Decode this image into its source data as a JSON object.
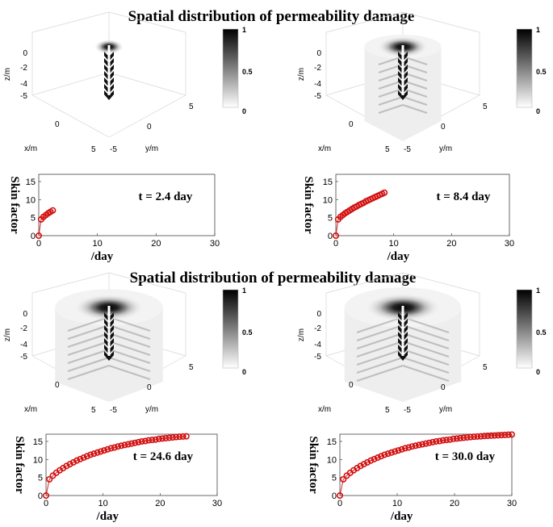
{
  "figure": {
    "title_top": "Spatial distribution of permeability damage",
    "title_bottom": "Spatial distribution of permeability damage"
  },
  "chart_data": [
    {
      "type": "heatmap",
      "title": "Spatial distribution of permeability damage",
      "panel": "3d-top-left",
      "xlabel": "x/m",
      "ylabel": "y/m",
      "zlabel": "z/m",
      "xticks": [
        "0",
        "5"
      ],
      "yticks": [
        "-5",
        "0",
        "5"
      ],
      "zticks": [
        "0",
        "-2",
        "-4",
        "-5"
      ],
      "colorbar": {
        "ticks": [
          "1",
          "0.5",
          "0"
        ],
        "range": [
          0,
          1
        ]
      },
      "time_day": 2.4,
      "damage_radius_fraction": 0.12
    },
    {
      "type": "heatmap",
      "panel": "3d-top-right",
      "xlabel": "x/m",
      "ylabel": "y/m",
      "zlabel": "z/m",
      "xticks": [
        "0",
        "5"
      ],
      "yticks": [
        "-5",
        "0",
        "5"
      ],
      "zticks": [
        "0",
        "-2",
        "-4",
        "-5"
      ],
      "colorbar": {
        "ticks": [
          "1",
          "0.5",
          "0"
        ],
        "range": [
          0,
          1
        ]
      },
      "time_day": 8.4,
      "damage_radius_fraction": 0.5
    },
    {
      "type": "scatter",
      "panel": "skin-top-left",
      "ylabel": "Skin factor",
      "xlabel": "/day",
      "annotation": "t = 2.4 day",
      "xlim": [
        0,
        30
      ],
      "ylim": [
        0,
        17
      ],
      "xticks": [
        "0",
        "10",
        "20",
        "30"
      ],
      "yticks": [
        "0",
        "5",
        "10",
        "15"
      ],
      "x": [
        0,
        0.4,
        0.8,
        1.2,
        1.6,
        2.0,
        2.4
      ],
      "y": [
        0,
        4.5,
        5.2,
        5.7,
        6.2,
        6.6,
        7.0
      ]
    },
    {
      "type": "scatter",
      "panel": "skin-top-right",
      "ylabel": "Skin factor",
      "xlabel": "/day",
      "annotation": "t = 8.4 day",
      "xlim": [
        0,
        30
      ],
      "ylim": [
        0,
        17
      ],
      "xticks": [
        "0",
        "10",
        "20",
        "30"
      ],
      "yticks": [
        "0",
        "5",
        "10",
        "15"
      ],
      "x": [
        0,
        0.4,
        0.8,
        1.2,
        1.6,
        2.0,
        2.4,
        2.8,
        3.2,
        3.6,
        4.0,
        4.4,
        4.8,
        5.2,
        5.6,
        6.0,
        6.4,
        6.8,
        7.2,
        7.6,
        8.0,
        8.4
      ],
      "y": [
        0,
        4.5,
        5.2,
        5.7,
        6.2,
        6.6,
        7.0,
        7.4,
        7.8,
        8.1,
        8.5,
        8.8,
        9.1,
        9.5,
        9.8,
        10.1,
        10.4,
        10.7,
        11.0,
        11.3,
        11.6,
        11.9
      ]
    },
    {
      "type": "heatmap",
      "title": "Spatial distribution of permeability damage",
      "panel": "3d-bottom-left",
      "xlabel": "x/m",
      "ylabel": "y/m",
      "zlabel": "z/m",
      "xticks": [
        "0",
        "5"
      ],
      "yticks": [
        "-5",
        "0",
        "5"
      ],
      "zticks": [
        "0",
        "-2",
        "-4",
        "-5"
      ],
      "colorbar": {
        "ticks": [
          "1",
          "0.5",
          "0"
        ],
        "range": [
          0,
          1
        ]
      },
      "time_day": 24.6,
      "damage_radius_fraction": 0.85
    },
    {
      "type": "heatmap",
      "panel": "3d-bottom-right",
      "xlabel": "x/m",
      "ylabel": "y/m",
      "zlabel": "z/m",
      "xticks": [
        "0",
        "5"
      ],
      "yticks": [
        "-5",
        "0",
        "5"
      ],
      "zticks": [
        "0",
        "-2",
        "-4",
        "-5"
      ],
      "colorbar": {
        "ticks": [
          "1",
          "0.5",
          "0"
        ],
        "range": [
          0,
          1
        ]
      },
      "time_day": 30.0,
      "damage_radius_fraction": 0.95
    },
    {
      "type": "scatter",
      "panel": "skin-bottom-left",
      "ylabel": "Skin factor",
      "xlabel": "/day",
      "annotation": "t = 24.6 day",
      "xlim": [
        0,
        30
      ],
      "ylim": [
        0,
        17
      ],
      "xticks": [
        "0",
        "10",
        "20",
        "30"
      ],
      "yticks": [
        "0",
        "5",
        "10",
        "15"
      ],
      "x": [
        0,
        0.6,
        1.2,
        1.8,
        2.4,
        3.0,
        3.6,
        4.2,
        4.8,
        5.4,
        6.0,
        6.6,
        7.2,
        7.8,
        8.4,
        9.0,
        9.6,
        10.2,
        10.8,
        11.4,
        12.0,
        12.6,
        13.2,
        13.8,
        14.4,
        15.0,
        15.6,
        16.2,
        16.8,
        17.4,
        18.0,
        18.6,
        19.2,
        19.8,
        20.4,
        21.0,
        21.6,
        22.2,
        22.8,
        23.4,
        24.0,
        24.6
      ],
      "y": [
        0,
        4.5,
        5.5,
        6.3,
        7.0,
        7.6,
        8.2,
        8.7,
        9.2,
        9.7,
        10.1,
        10.5,
        10.9,
        11.3,
        11.6,
        11.9,
        12.2,
        12.5,
        12.8,
        13.1,
        13.3,
        13.6,
        13.8,
        14.0,
        14.2,
        14.4,
        14.6,
        14.8,
        15.0,
        15.1,
        15.3,
        15.4,
        15.5,
        15.7,
        15.8,
        15.9,
        16.0,
        16.1,
        16.2,
        16.3,
        16.35,
        16.4
      ]
    },
    {
      "type": "scatter",
      "panel": "skin-bottom-right",
      "ylabel": "Skin factor",
      "xlabel": "/day",
      "annotation": "t = 30.0 day",
      "xlim": [
        0,
        30
      ],
      "ylim": [
        0,
        17
      ],
      "xticks": [
        "0",
        "10",
        "20",
        "30"
      ],
      "yticks": [
        "0",
        "5",
        "10",
        "15"
      ],
      "x": [
        0,
        0.6,
        1.2,
        1.8,
        2.4,
        3.0,
        3.6,
        4.2,
        4.8,
        5.4,
        6.0,
        6.6,
        7.2,
        7.8,
        8.4,
        9.0,
        9.6,
        10.2,
        10.8,
        11.4,
        12.0,
        12.6,
        13.2,
        13.8,
        14.4,
        15.0,
        15.6,
        16.2,
        16.8,
        17.4,
        18.0,
        18.6,
        19.2,
        19.8,
        20.4,
        21.0,
        21.6,
        22.2,
        22.8,
        23.4,
        24.0,
        24.6,
        25.2,
        25.8,
        26.4,
        27.0,
        27.6,
        28.2,
        28.8,
        29.4,
        30.0
      ],
      "y": [
        0,
        4.5,
        5.5,
        6.3,
        7.0,
        7.6,
        8.2,
        8.7,
        9.2,
        9.7,
        10.1,
        10.5,
        10.9,
        11.3,
        11.6,
        11.9,
        12.2,
        12.5,
        12.8,
        13.1,
        13.3,
        13.6,
        13.8,
        14.0,
        14.2,
        14.4,
        14.6,
        14.8,
        15.0,
        15.1,
        15.3,
        15.4,
        15.5,
        15.7,
        15.8,
        15.9,
        16.0,
        16.1,
        16.2,
        16.3,
        16.35,
        16.4,
        16.5,
        16.55,
        16.6,
        16.65,
        16.7,
        16.75,
        16.8,
        16.85,
        16.9
      ]
    }
  ]
}
